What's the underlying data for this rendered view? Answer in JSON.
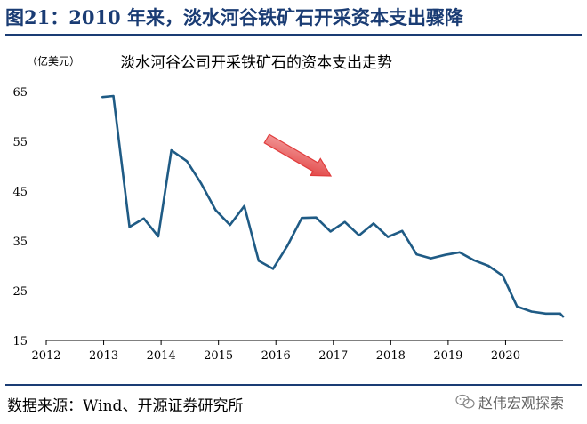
{
  "figure": {
    "title": "图21：2010 年来，淡水河谷铁矿石开采资本支出骤降",
    "source": "数据来源：Wind、开源证券研究所",
    "watermark": "赵伟宏观探索"
  },
  "chart_data": {
    "type": "line",
    "title": "淡水河谷公司开采铁矿石的资本支出走势",
    "ylabel": "（亿美元）",
    "xlabel": "",
    "xlim": [
      2012,
      2021
    ],
    "ylim": [
      15,
      65
    ],
    "xticks": [
      2012,
      2013,
      2014,
      2015,
      2016,
      2017,
      2018,
      2019,
      2020
    ],
    "yticks": [
      15,
      25,
      35,
      45,
      55,
      65
    ],
    "grid": false,
    "line_color": "#1f5b85",
    "arrow_color": "#e03c3c",
    "series": [
      {
        "x": [
          2012.98,
          2013.17,
          2013.45,
          2013.7,
          2013.95,
          2014.18,
          2014.45,
          2014.7,
          2014.95,
          2015.2,
          2015.45,
          2015.7,
          2015.95,
          2016.2,
          2016.45,
          2016.7,
          2016.95,
          2017.2,
          2017.45,
          2017.7,
          2017.95,
          2018.2,
          2018.45,
          2018.7,
          2018.95,
          2019.2,
          2019.45,
          2019.7,
          2019.95,
          2020.2,
          2020.45,
          2020.7,
          2020.95,
          2021.0
        ],
        "y": [
          63.9,
          64.1,
          37.8,
          39.5,
          35.9,
          53.2,
          51.0,
          46.5,
          41.2,
          38.2,
          42.0,
          31.0,
          29.4,
          34.0,
          39.6,
          39.7,
          36.9,
          38.8,
          36.1,
          38.5,
          35.8,
          37.0,
          32.3,
          31.5,
          32.2,
          32.7,
          31.1,
          30.0,
          28.0,
          21.8,
          20.8,
          20.4,
          20.4,
          19.8
        ]
      }
    ]
  }
}
